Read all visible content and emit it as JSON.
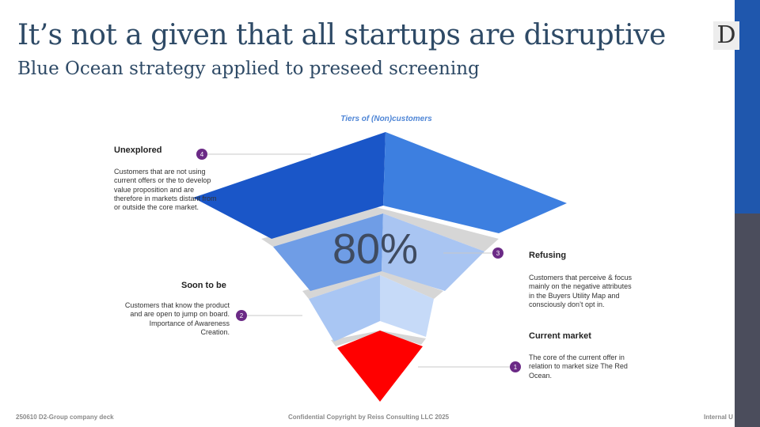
{
  "header": {
    "title": "It’s not a given that all startups are disruptive",
    "subtitle": "Blue Ocean strategy applied to preseed screening",
    "logo_letter": "D"
  },
  "diagram": {
    "title": "Tiers of (Non)customers",
    "center_value": "80%",
    "tiers": [
      {
        "number": "4",
        "label": "Unexplored",
        "description": "Customers that are not using current offers or the to develop value proposition and are therefore in markets distant from or outside the core market."
      },
      {
        "number": "3",
        "label": "Refusing",
        "description": "Customers that perceive & focus mainly on the negative attributes in the Buyers Utility Map and consciously don’t opt in."
      },
      {
        "number": "2",
        "label": "Soon to be",
        "description": "Customers that know the product and are open to jump on board. Importance of Awareness Creation."
      },
      {
        "number": "1",
        "label": "Current market",
        "description": "The core of the current offer in relation to market size The Red Ocean."
      }
    ],
    "colors": {
      "tier4": "#1a56c8",
      "tier3": "#7aa3e6",
      "tier2": "#aecbf5",
      "tier1": "#ff0000",
      "badge": "#6b2a86"
    }
  },
  "footer": {
    "left": "250610 D2-Group company deck",
    "center": "Confidential Copyright by Reiss Consulting LLC 2025",
    "right": "Internal U"
  }
}
